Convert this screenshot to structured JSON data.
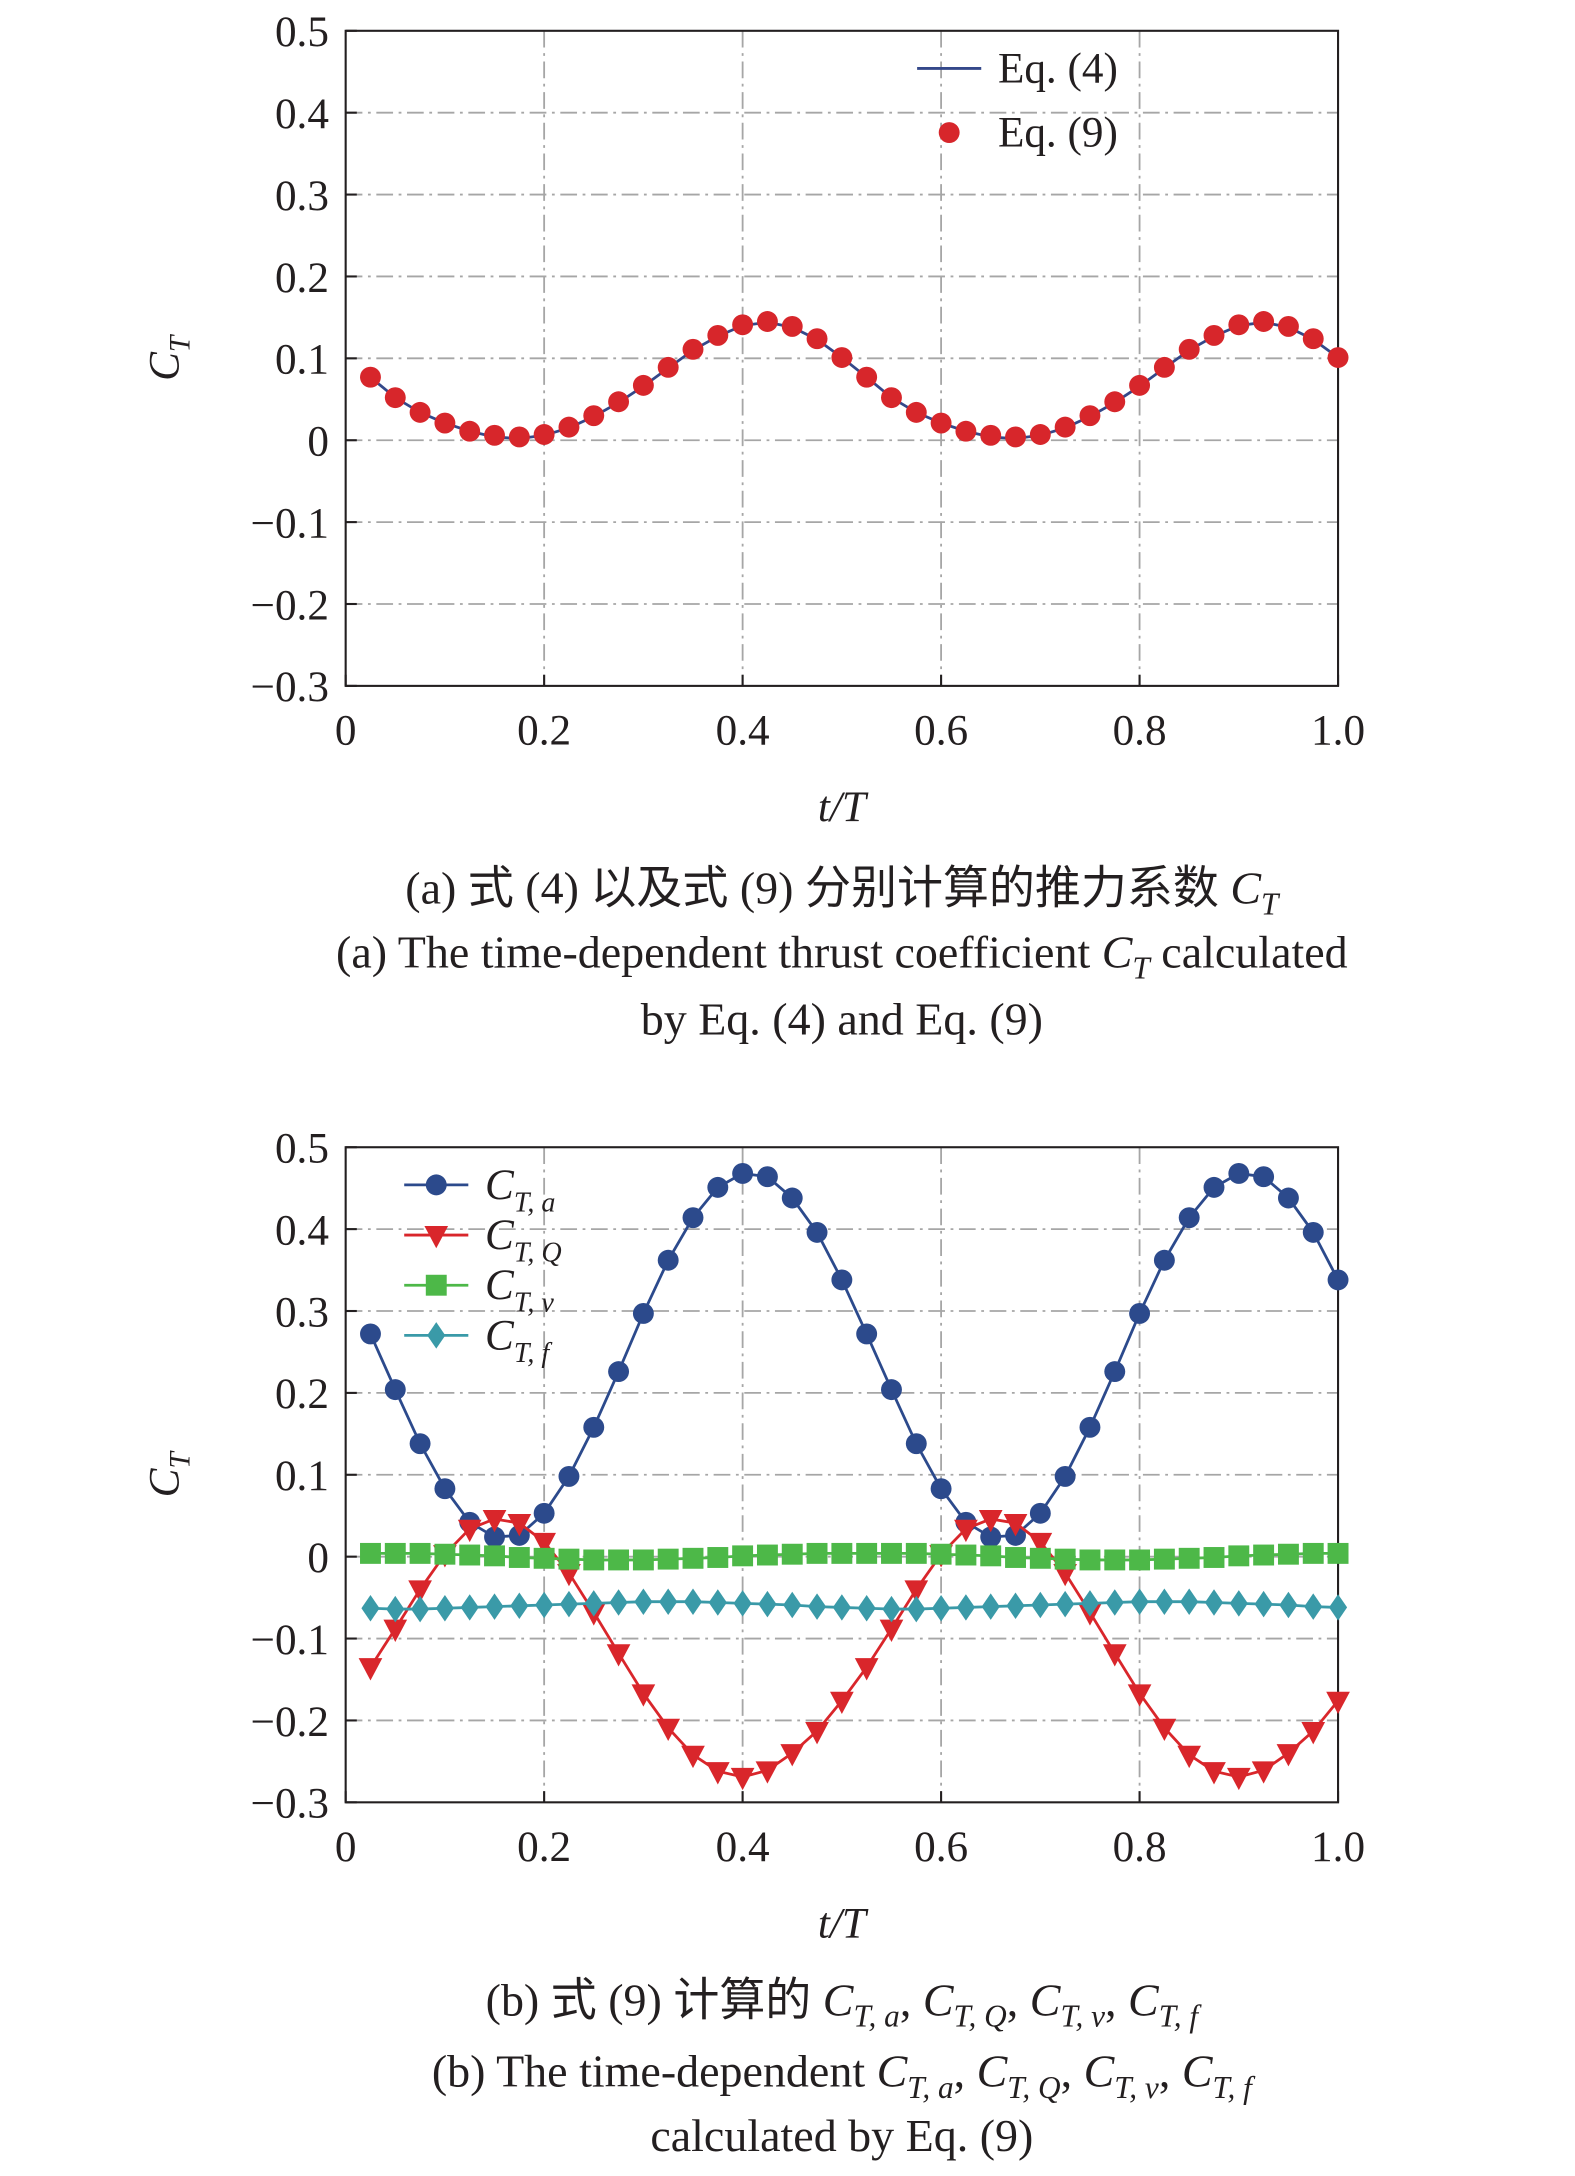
{
  "chart_data": [
    {
      "type": "line",
      "x": [
        0.025,
        0.05,
        0.075,
        0.1,
        0.125,
        0.15,
        0.175,
        0.2,
        0.225,
        0.25,
        0.275,
        0.3,
        0.325,
        0.35,
        0.375,
        0.4,
        0.425,
        0.45,
        0.475,
        0.5,
        0.525,
        0.55,
        0.575,
        0.6,
        0.625,
        0.65,
        0.675,
        0.7,
        0.725,
        0.75,
        0.775,
        0.8,
        0.825,
        0.85,
        0.875,
        0.9,
        0.925,
        0.95,
        0.975,
        1.0
      ],
      "series": [
        {
          "name": "Eq. (4)",
          "color": "#34488a",
          "line": true,
          "marker": "none",
          "values": [
            0.077,
            0.052,
            0.034,
            0.021,
            0.011,
            0.004,
            0.002,
            0.006,
            0.015,
            0.029,
            0.046,
            0.066,
            0.088,
            0.11,
            0.127,
            0.14,
            0.144,
            0.138,
            0.123,
            0.101,
            0.077,
            0.052,
            0.034,
            0.021,
            0.011,
            0.004,
            0.002,
            0.006,
            0.015,
            0.029,
            0.046,
            0.066,
            0.088,
            0.11,
            0.127,
            0.14,
            0.144,
            0.138,
            0.123,
            0.101
          ]
        },
        {
          "name": "Eq. (9)",
          "color": "#d7262b",
          "line": false,
          "marker": "circle",
          "values": [
            0.077,
            0.052,
            0.034,
            0.021,
            0.011,
            0.006,
            0.004,
            0.007,
            0.016,
            0.03,
            0.047,
            0.067,
            0.089,
            0.111,
            0.128,
            0.141,
            0.145,
            0.139,
            0.124,
            0.101,
            0.077,
            0.052,
            0.034,
            0.021,
            0.011,
            0.006,
            0.004,
            0.007,
            0.016,
            0.03,
            0.047,
            0.067,
            0.089,
            0.111,
            0.128,
            0.141,
            0.145,
            0.139,
            0.124,
            0.101
          ]
        }
      ],
      "xlim": [
        0,
        1
      ],
      "xticks": [
        0,
        0.2,
        0.4,
        0.6,
        0.8,
        {
          "value": 1,
          "label": "1.0"
        }
      ],
      "ylim": [
        -0.3,
        0.5
      ],
      "yticks": [
        {
          "value": -0.3,
          "label": "−0.3"
        },
        {
          "value": -0.2,
          "label": "−0.2"
        },
        {
          "value": -0.1,
          "label": "−0.1"
        },
        0,
        0.1,
        0.2,
        0.3,
        0.4,
        0.5
      ],
      "grid": true,
      "legend": "upper right",
      "xlabel": "t/T",
      "ylabel": {
        "text": "C",
        "subscript": "T"
      },
      "caption": [
        [
          {
            "t": "(a) 式 (4) 以及式 (9) 分别计算的推力系数 "
          },
          {
            "t": "C",
            "i": true
          },
          {
            "t": "T",
            "sub": true
          }
        ],
        [
          {
            "t": "(a) The time-dependent thrust coefficient "
          },
          {
            "t": "C",
            "i": true
          },
          {
            "t": "T",
            "sub": true
          },
          {
            "t": " calculated"
          }
        ],
        [
          {
            "t": "by Eq. (4) and Eq. (9)"
          }
        ]
      ]
    },
    {
      "type": "line",
      "x": [
        0.025,
        0.05,
        0.075,
        0.1,
        0.125,
        0.15,
        0.175,
        0.2,
        0.225,
        0.25,
        0.275,
        0.3,
        0.325,
        0.35,
        0.375,
        0.4,
        0.425,
        0.45,
        0.475,
        0.5,
        0.525,
        0.55,
        0.575,
        0.6,
        0.625,
        0.65,
        0.675,
        0.7,
        0.725,
        0.75,
        0.775,
        0.8,
        0.825,
        0.85,
        0.875,
        0.9,
        0.925,
        0.95,
        0.975,
        1.0
      ],
      "series": [
        {
          "name": "C",
          "subscript": "T, a",
          "color": "#2c4a8c",
          "line": true,
          "marker": "circle",
          "values": [
            0.272,
            0.204,
            0.138,
            0.083,
            0.042,
            0.024,
            0.026,
            0.053,
            0.098,
            0.158,
            0.226,
            0.297,
            0.362,
            0.414,
            0.451,
            0.468,
            0.464,
            0.438,
            0.396,
            0.338,
            0.272,
            0.204,
            0.138,
            0.083,
            0.042,
            0.024,
            0.026,
            0.053,
            0.098,
            0.158,
            0.226,
            0.297,
            0.362,
            0.414,
            0.451,
            0.468,
            0.464,
            0.438,
            0.396,
            0.338
          ]
        },
        {
          "name": "C",
          "subscript": "T, Q",
          "color": "#d9262b",
          "line": true,
          "marker": "triangle-down",
          "values": [
            -0.135,
            -0.088,
            -0.04,
            0.003,
            0.034,
            0.046,
            0.041,
            0.018,
            -0.02,
            -0.068,
            -0.118,
            -0.167,
            -0.209,
            -0.242,
            -0.262,
            -0.269,
            -0.261,
            -0.24,
            -0.213,
            -0.176,
            -0.135,
            -0.088,
            -0.04,
            0.003,
            0.034,
            0.046,
            0.041,
            0.018,
            -0.02,
            -0.068,
            -0.118,
            -0.167,
            -0.209,
            -0.242,
            -0.262,
            -0.269,
            -0.261,
            -0.24,
            -0.213,
            -0.176
          ]
        },
        {
          "name": "C",
          "subscript": "T, v",
          "color": "#4db848",
          "line": true,
          "marker": "square",
          "values": [
            0.004,
            0.004,
            0.004,
            0.003,
            0.002,
            0.001,
            -0.001,
            -0.002,
            -0.003,
            -0.004,
            -0.004,
            -0.004,
            -0.003,
            -0.002,
            -0.001,
            0.001,
            0.002,
            0.003,
            0.004,
            0.004,
            0.004,
            0.004,
            0.004,
            0.003,
            0.002,
            0.001,
            -0.001,
            -0.002,
            -0.003,
            -0.004,
            -0.004,
            -0.004,
            -0.003,
            -0.002,
            -0.001,
            0.001,
            0.002,
            0.003,
            0.004,
            0.004
          ]
        },
        {
          "name": "C",
          "subscript": "T, f",
          "color": "#3a9aa8",
          "line": true,
          "marker": "diamond",
          "values": [
            -0.063,
            -0.064,
            -0.064,
            -0.063,
            -0.062,
            -0.061,
            -0.06,
            -0.059,
            -0.058,
            -0.057,
            -0.056,
            -0.055,
            -0.055,
            -0.055,
            -0.056,
            -0.057,
            -0.058,
            -0.059,
            -0.061,
            -0.062,
            -0.063,
            -0.064,
            -0.064,
            -0.063,
            -0.062,
            -0.061,
            -0.06,
            -0.059,
            -0.058,
            -0.057,
            -0.056,
            -0.055,
            -0.055,
            -0.055,
            -0.056,
            -0.057,
            -0.058,
            -0.059,
            -0.061,
            -0.062
          ]
        }
      ],
      "xlim": [
        0,
        1
      ],
      "xticks": [
        0,
        0.2,
        0.4,
        0.6,
        0.8,
        {
          "value": 1,
          "label": "1.0"
        }
      ],
      "ylim": [
        -0.3,
        0.5
      ],
      "yticks": [
        {
          "value": -0.3,
          "label": "−0.3"
        },
        {
          "value": -0.2,
          "label": "−0.2"
        },
        {
          "value": -0.1,
          "label": "−0.1"
        },
        0,
        0.1,
        0.2,
        0.3,
        0.4,
        0.5
      ],
      "grid": true,
      "legend": "upper left",
      "xlabel": "t/T",
      "ylabel": {
        "text": "C",
        "subscript": "T"
      },
      "caption": [
        [
          {
            "t": "(b) 式 (9) 计算的 "
          },
          {
            "t": "C",
            "i": true
          },
          {
            "t": "T, a",
            "sub": true
          },
          {
            "t": ", "
          },
          {
            "t": "C",
            "i": true
          },
          {
            "t": "T, Q",
            "sub": true
          },
          {
            "t": ", "
          },
          {
            "t": "C",
            "i": true
          },
          {
            "t": "T, v",
            "sub": true
          },
          {
            "t": ", "
          },
          {
            "t": "C",
            "i": true
          },
          {
            "t": "T, f",
            "sub": true
          }
        ],
        [
          {
            "t": "(b) The time-dependent "
          },
          {
            "t": "C",
            "i": true
          },
          {
            "t": "T, a",
            "sub": true
          },
          {
            "t": ", "
          },
          {
            "t": "C",
            "i": true
          },
          {
            "t": "T, Q",
            "sub": true
          },
          {
            "t": ", "
          },
          {
            "t": "C",
            "i": true
          },
          {
            "t": "T, v",
            "sub": true
          },
          {
            "t": ", "
          },
          {
            "t": "C",
            "i": true
          },
          {
            "t": "T, f",
            "sub": true
          }
        ],
        [
          {
            "t": "calculated by Eq. (9)"
          }
        ]
      ]
    }
  ]
}
